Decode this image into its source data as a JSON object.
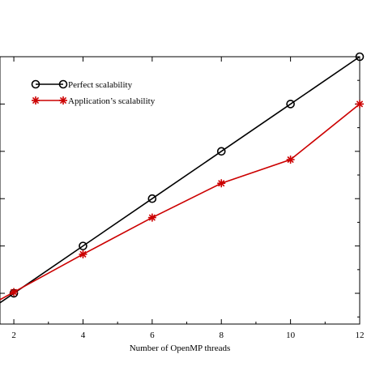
{
  "chart_data": {
    "type": "line",
    "xlabel": "Number of OpenMP threads",
    "ylabel": "",
    "xlim": [
      1.6,
      12
    ],
    "ylim": [
      0.7,
      12
    ],
    "x_ticks": [
      2,
      4,
      6,
      8,
      10,
      12
    ],
    "grid": false,
    "legend_position": "top-left",
    "series": [
      {
        "name": "Perfect scalability",
        "color": "#000000",
        "marker": "circle",
        "x": [
          2,
          4,
          6,
          8,
          10,
          12
        ],
        "y": [
          2,
          4,
          6,
          8,
          10,
          12
        ]
      },
      {
        "name": "Application’s scalability",
        "color": "#cc0000",
        "marker": "star",
        "x": [
          2,
          4,
          6,
          8,
          10,
          12
        ],
        "y": [
          2.05,
          3.65,
          5.2,
          6.65,
          7.65,
          10.0
        ]
      }
    ]
  }
}
